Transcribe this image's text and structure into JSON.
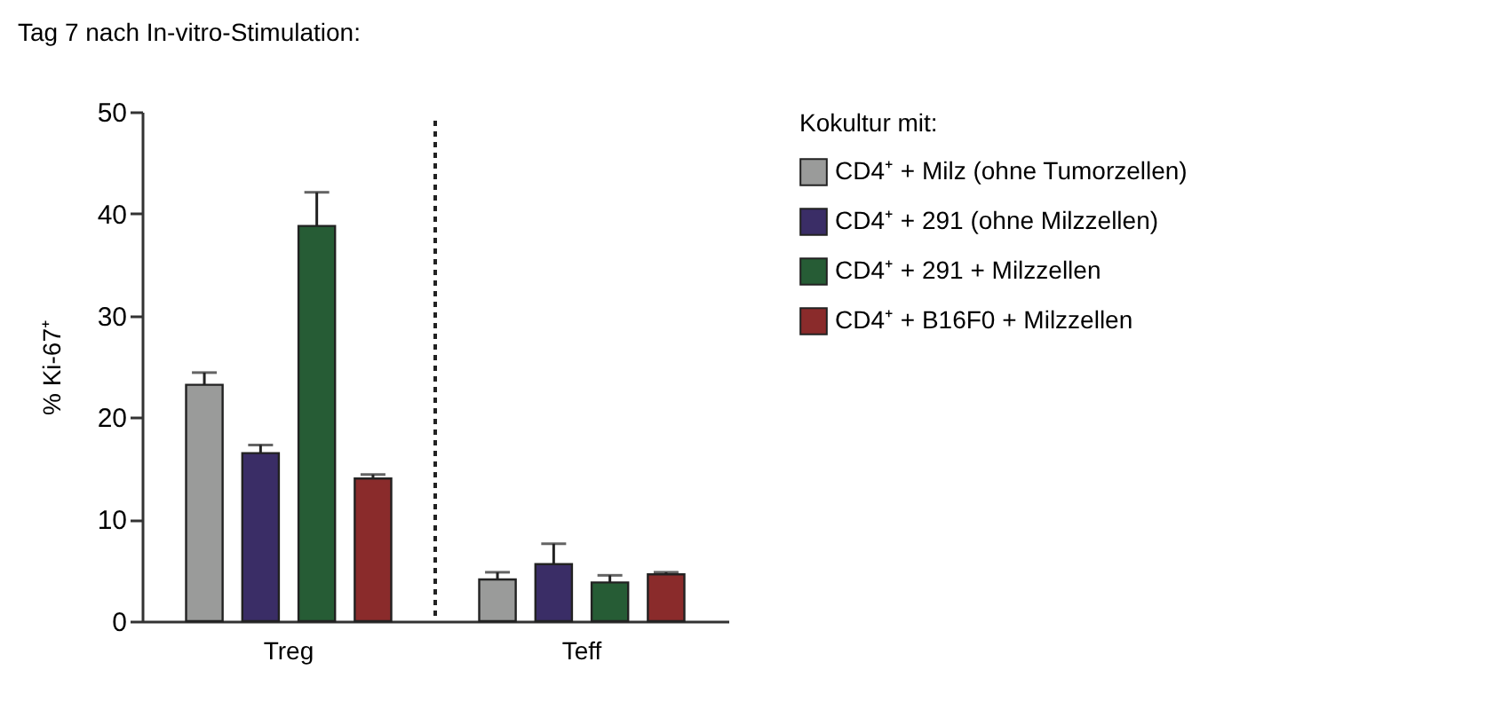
{
  "chart_data": {
    "type": "bar",
    "title": "Tag 7 nach In-vitro-Stimulation:",
    "ylabel": "% Ki-67⁺",
    "legend_title": "Kokultur mit:",
    "categories": [
      "Treg",
      "Teff"
    ],
    "series": [
      {
        "name": "CD4⁺ + Milz (ohne Tumorzellen)",
        "color": "#9a9b9a",
        "values": [
          23.2,
          4.1
        ],
        "errors": [
          [
            23.2,
            24.4
          ],
          [
            4.1,
            4.8
          ]
        ]
      },
      {
        "name": "CD4⁺ + 291 (ohne Milzzellen)",
        "color": "#3a2d66",
        "values": [
          16.5,
          5.6
        ],
        "errors": [
          [
            16.5,
            17.3
          ],
          [
            5.6,
            7.6
          ]
        ]
      },
      {
        "name": "CD4⁺ + 291 + Milzzellen",
        "color": "#265c35",
        "values": [
          38.8,
          3.8
        ],
        "errors": [
          [
            38.8,
            42.1
          ],
          [
            3.8,
            4.5
          ]
        ]
      },
      {
        "name": "CD4⁺ + B16F0 + Milzzellen",
        "color": "#8a2b2b",
        "values": [
          14.0,
          4.6
        ],
        "errors": [
          [
            14.0,
            14.4
          ],
          [
            4.6,
            4.8
          ]
        ]
      }
    ],
    "ylim": [
      0,
      50
    ],
    "yticks": [
      0,
      10,
      20,
      30,
      40,
      50
    ],
    "grid": false,
    "legend": "top right"
  }
}
